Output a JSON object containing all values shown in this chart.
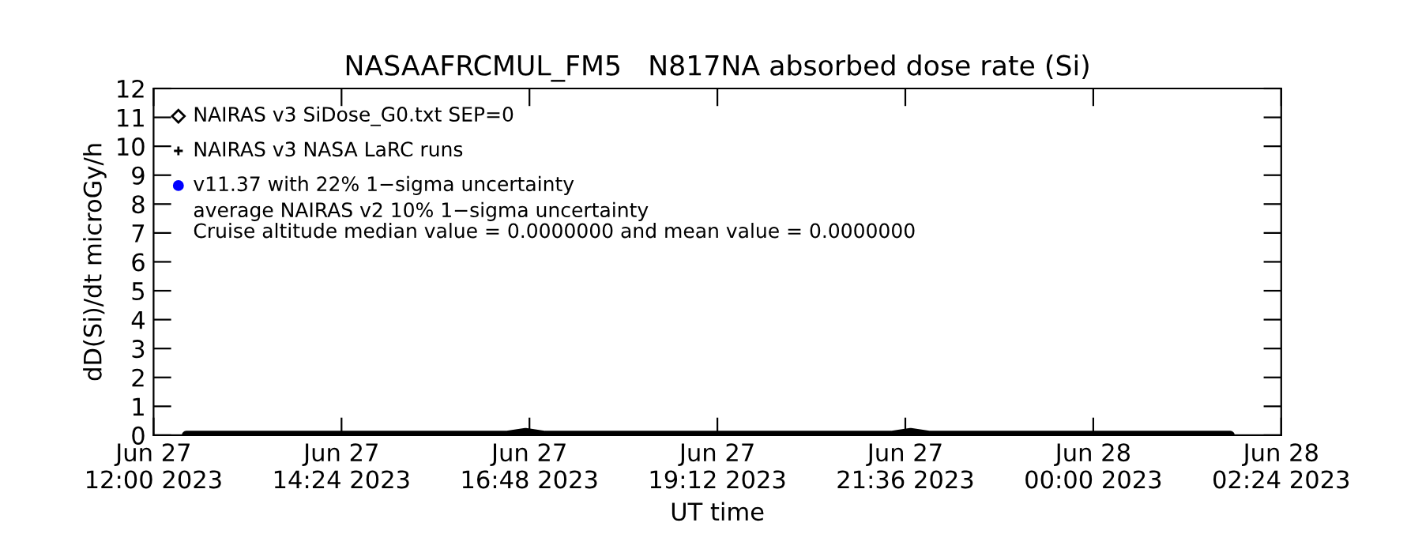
{
  "chart_data": {
    "type": "line",
    "title": "NASAAFRCMUL_FM5   N817NA absorbed dose rate (Si)",
    "xlabel": "UT time",
    "ylabel": "dD(Si)/dt microGy/h",
    "x": [
      "2023-06-27T12:25",
      "2023-06-27T13:30",
      "2023-06-27T15:00",
      "2023-06-27T16:30",
      "2023-06-27T16:45",
      "2023-06-27T17:00",
      "2023-06-27T19:00",
      "2023-06-27T21:25",
      "2023-06-27T21:40",
      "2023-06-27T21:55",
      "2023-06-28T00:00",
      "2023-06-28T01:45"
    ],
    "series": [
      {
        "color": "#000000",
        "values": [
          0,
          0,
          0,
          0,
          0.1,
          0,
          0,
          0,
          0.1,
          0,
          0,
          0
        ]
      }
    ],
    "annotations": [
      "NAIRAS v3 SiDose_G0.txt SEP=0",
      "NAIRAS v3 NASA LaRC runs",
      "v11.37 with 22% 1−sigma uncertainty",
      "average NAIRAS v2 10% 1−sigma uncertainty",
      "Cruise altitude median value = 0.0000000 and mean value = 0.0000000"
    ],
    "xlim": [
      "2023-06-27T12:00",
      "2023-06-28T02:24"
    ],
    "xticks": [
      {
        "value": "2023-06-27T12:00",
        "label": "Jun 27\n12:00 2023"
      },
      {
        "value": "2023-06-27T14:24",
        "label": "Jun 27\n14:24 2023"
      },
      {
        "value": "2023-06-27T16:48",
        "label": "Jun 27\n16:48 2023"
      },
      {
        "value": "2023-06-27T19:12",
        "label": "Jun 27\n19:12 2023"
      },
      {
        "value": "2023-06-27T21:36",
        "label": "Jun 27\n21:36 2023"
      },
      {
        "value": "2023-06-28T00:00",
        "label": "Jun 28\n00:00 2023"
      },
      {
        "value": "2023-06-28T02:24",
        "label": "Jun 28\n02:24 2023"
      }
    ],
    "ylim": [
      0,
      12
    ],
    "yticks": [
      0,
      1,
      2,
      3,
      4,
      5,
      6,
      7,
      8,
      9,
      10,
      11,
      12
    ],
    "grid": false,
    "legend": false
  }
}
